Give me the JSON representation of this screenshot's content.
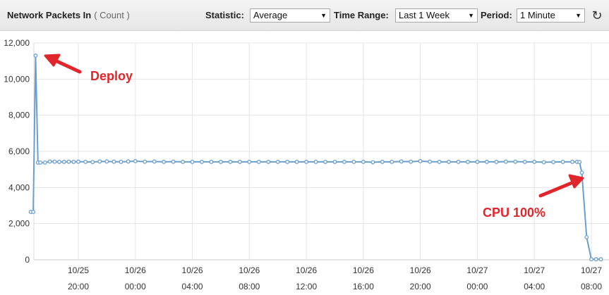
{
  "toolbar": {
    "title": "Network Packets In",
    "unit": "( Count )",
    "statistic_label": "Statistic:",
    "statistic_value": "Average",
    "time_range_label": "Time Range:",
    "time_range_value": "Last 1 Week",
    "period_label": "Period:",
    "period_value": "1 Minute",
    "refresh_icon": "refresh-icon"
  },
  "annotations": {
    "deploy": "Deploy",
    "cpu": "CPU 100%",
    "arrow_color": "#e0262b"
  },
  "chart_data": {
    "type": "line",
    "title": "",
    "xlabel": "",
    "ylabel": "",
    "ylim": [
      0,
      12000
    ],
    "yticks": [
      "12,000",
      "10,000",
      "8,000",
      "6,000",
      "4,000",
      "2,000",
      "0"
    ],
    "xticks": [
      {
        "date": "10/25",
        "time": "20:00"
      },
      {
        "date": "10/26",
        "time": "00:00"
      },
      {
        "date": "10/26",
        "time": "04:00"
      },
      {
        "date": "10/26",
        "time": "08:00"
      },
      {
        "date": "10/26",
        "time": "12:00"
      },
      {
        "date": "10/26",
        "time": "16:00"
      },
      {
        "date": "10/26",
        "time": "20:00"
      },
      {
        "date": "10/27",
        "time": "00:00"
      },
      {
        "date": "10/27",
        "time": "04:00"
      },
      {
        "date": "10/27",
        "time": "08:00"
      }
    ],
    "line_color": "#6a9fd0",
    "grid": true,
    "series": [
      {
        "x": [
          "10/25 16:40",
          "10/25 16:50",
          "10/25 17:00",
          "10/25 17:10",
          "10/25 17:20",
          "10/25 17:40",
          "10/25 18:00",
          "10/25 18:20",
          "10/25 18:40",
          "10/25 19:00",
          "10/25 19:20",
          "10/25 19:40",
          "10/25 20:00",
          "10/25 20:30",
          "10/25 21:00",
          "10/25 21:30",
          "10/25 22:00",
          "10/25 22:30",
          "10/25 23:00",
          "10/25 23:30",
          "10/26 00:00",
          "10/26 00:40",
          "10/26 01:20",
          "10/26 02:00",
          "10/26 02:40",
          "10/26 03:20",
          "10/26 04:00",
          "10/26 04:40",
          "10/26 05:20",
          "10/26 06:00",
          "10/26 06:40",
          "10/26 07:20",
          "10/26 08:00",
          "10/26 08:40",
          "10/26 09:20",
          "10/26 10:00",
          "10/26 10:40",
          "10/26 11:20",
          "10/26 12:00",
          "10/26 12:40",
          "10/26 13:20",
          "10/26 14:00",
          "10/26 14:40",
          "10/26 15:20",
          "10/26 16:00",
          "10/26 16:40",
          "10/26 17:20",
          "10/26 18:00",
          "10/26 18:40",
          "10/26 19:20",
          "10/26 20:00",
          "10/26 20:40",
          "10/26 21:20",
          "10/26 22:00",
          "10/26 22:40",
          "10/26 23:20",
          "10/27 00:00",
          "10/27 00:40",
          "10/27 01:20",
          "10/27 02:00",
          "10/27 02:40",
          "10/27 03:20",
          "10/27 04:00",
          "10/27 04:40",
          "10/27 05:20",
          "10/27 06:00",
          "10/27 06:40",
          "10/27 07:00",
          "10/27 07:10",
          "10/27 07:20",
          "10/27 07:40",
          "10/27 08:00",
          "10/27 08:20",
          "10/27 08:40"
        ],
        "values": [
          2650,
          2650,
          11300,
          5380,
          5380,
          5380,
          5440,
          5430,
          5420,
          5420,
          5430,
          5420,
          5430,
          5420,
          5410,
          5440,
          5440,
          5430,
          5420,
          5440,
          5460,
          5430,
          5440,
          5420,
          5430,
          5420,
          5420,
          5420,
          5420,
          5420,
          5420,
          5420,
          5420,
          5420,
          5420,
          5420,
          5420,
          5420,
          5420,
          5420,
          5420,
          5420,
          5420,
          5420,
          5420,
          5400,
          5420,
          5420,
          5440,
          5430,
          5460,
          5430,
          5420,
          5420,
          5420,
          5420,
          5420,
          5420,
          5420,
          5430,
          5430,
          5420,
          5420,
          5400,
          5410,
          5420,
          5420,
          5420,
          5410,
          4820,
          1250,
          30,
          30,
          30
        ]
      }
    ]
  }
}
